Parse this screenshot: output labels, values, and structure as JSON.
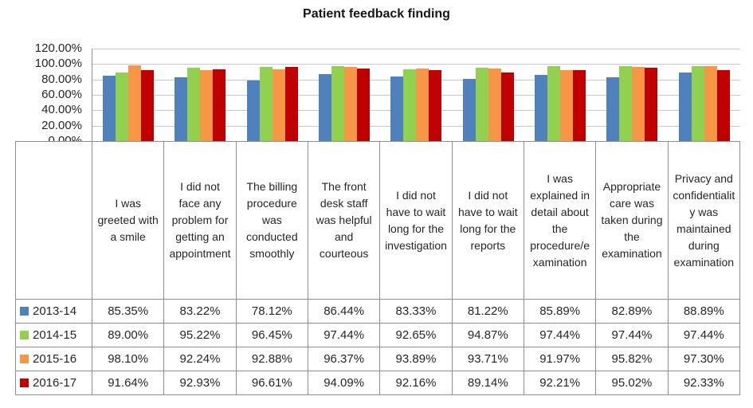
{
  "chart_data": {
    "type": "bar",
    "title": "Patient feedback finding",
    "xlabel": "",
    "ylabel": "",
    "ylim": [
      0,
      120
    ],
    "grid": true,
    "legend_position": "table-left",
    "value_suffix": "%",
    "y_ticks": [
      "120.00%",
      "100.00%",
      "80.00%",
      "60.00%",
      "40.00%",
      "20.00%",
      "0.00%"
    ],
    "categories": [
      "I was greeted with a smile",
      "I did not face any problem for getting an appointment",
      "The billing procedure was conducted smoothly",
      "The front desk staff was helpful and courteous",
      "I did not have to wait long for the investigation",
      "I did not have to wait long for the reports",
      "I was explained in detail about the procedure/examination",
      "Appropriate care was taken during the examination",
      "Privacy and confidentiality was maintained during examination"
    ],
    "series": [
      {
        "name": "2013-14",
        "color": "#4F81BD",
        "values": [
          85.35,
          83.22,
          78.12,
          86.44,
          83.33,
          81.22,
          85.89,
          82.89,
          88.89
        ]
      },
      {
        "name": "2014-15",
        "color": "#92D050",
        "values": [
          89.0,
          95.22,
          96.45,
          97.44,
          92.65,
          94.87,
          97.44,
          97.44,
          97.44
        ]
      },
      {
        "name": "2015-16",
        "color": "#F79646",
        "values": [
          98.1,
          92.24,
          92.88,
          96.37,
          93.89,
          93.71,
          91.97,
          95.82,
          97.3
        ]
      },
      {
        "name": "2016-17",
        "color": "#C00000",
        "values": [
          91.64,
          92.93,
          96.61,
          94.09,
          92.16,
          89.14,
          92.21,
          95.02,
          92.33
        ]
      }
    ],
    "colors": {
      "gridline": "#C8C8C8",
      "axis": "#8F8F8F",
      "text": "#262626"
    }
  }
}
